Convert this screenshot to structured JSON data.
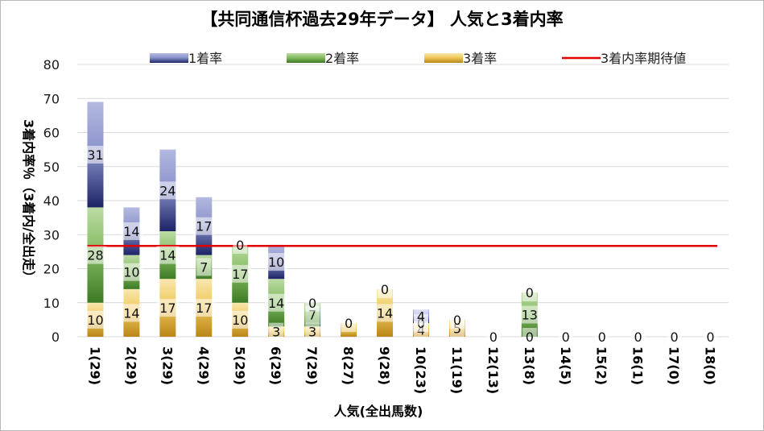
{
  "colors": {
    "first": "#3b4590",
    "second": "#5f9a3f",
    "third": "#d4a53a",
    "expected_line": "#e00000",
    "grid": "#d9d9d9"
  },
  "chart_data": {
    "type": "bar",
    "stacked": true,
    "title": "【共同通信杯過去29年データ】 人気と3着内率",
    "xlabel": "人気(全出馬数)",
    "ylabel": "3着内率％（3着内/全出走）",
    "ylim": [
      0,
      80
    ],
    "yticks": [
      0,
      10,
      20,
      30,
      40,
      50,
      60,
      70,
      80
    ],
    "grid": true,
    "legend_position": "top",
    "categories": [
      "1(29)",
      "2(29)",
      "3(29)",
      "4(29)",
      "5(29)",
      "6(29)",
      "7(29)",
      "8(27)",
      "9(28)",
      "10(23)",
      "11(19)",
      "12(13)",
      "13(8)",
      "14(5)",
      "15(2)",
      "16(1)",
      "17(0)",
      "18(0)"
    ],
    "series": [
      {
        "name": "1着率",
        "values": [
          31,
          14,
          24,
          17,
          0,
          10,
          0,
          0,
          0,
          4,
          0,
          0,
          0,
          0,
          0,
          0,
          0,
          0
        ]
      },
      {
        "name": "2着率",
        "values": [
          28,
          10,
          14,
          7,
          17,
          14,
          7,
          0,
          0,
          0,
          0,
          0,
          13,
          0,
          0,
          0,
          0,
          0
        ]
      },
      {
        "name": "3着率",
        "values": [
          10,
          14,
          17,
          17,
          10,
          3,
          3,
          4,
          14,
          4,
          5,
          0,
          0,
          0,
          0,
          0,
          0,
          0
        ]
      }
    ],
    "segment_labels": [
      [
        "31",
        "28",
        "10"
      ],
      [
        "14",
        "10",
        "14"
      ],
      [
        "24",
        "14",
        "17"
      ],
      [
        "17",
        "7",
        "17"
      ],
      [
        "0",
        "17",
        "10"
      ],
      [
        "10",
        "14",
        "3"
      ],
      [
        "0",
        "7",
        "3"
      ],
      [
        "0",
        "",
        ""
      ],
      [
        "0",
        "",
        "14"
      ],
      [
        "4",
        "0",
        "4"
      ],
      [
        "0",
        "",
        "5"
      ],
      [
        "0",
        "",
        ""
      ],
      [
        "0",
        "13",
        "0"
      ],
      [
        "0",
        "",
        ""
      ],
      [
        "0",
        "",
        ""
      ],
      [
        "0",
        "",
        ""
      ],
      [
        "0",
        "",
        ""
      ],
      [
        "0",
        "",
        ""
      ]
    ],
    "expected_line": {
      "name": "3着内率期待値",
      "value": 26.7
    }
  }
}
